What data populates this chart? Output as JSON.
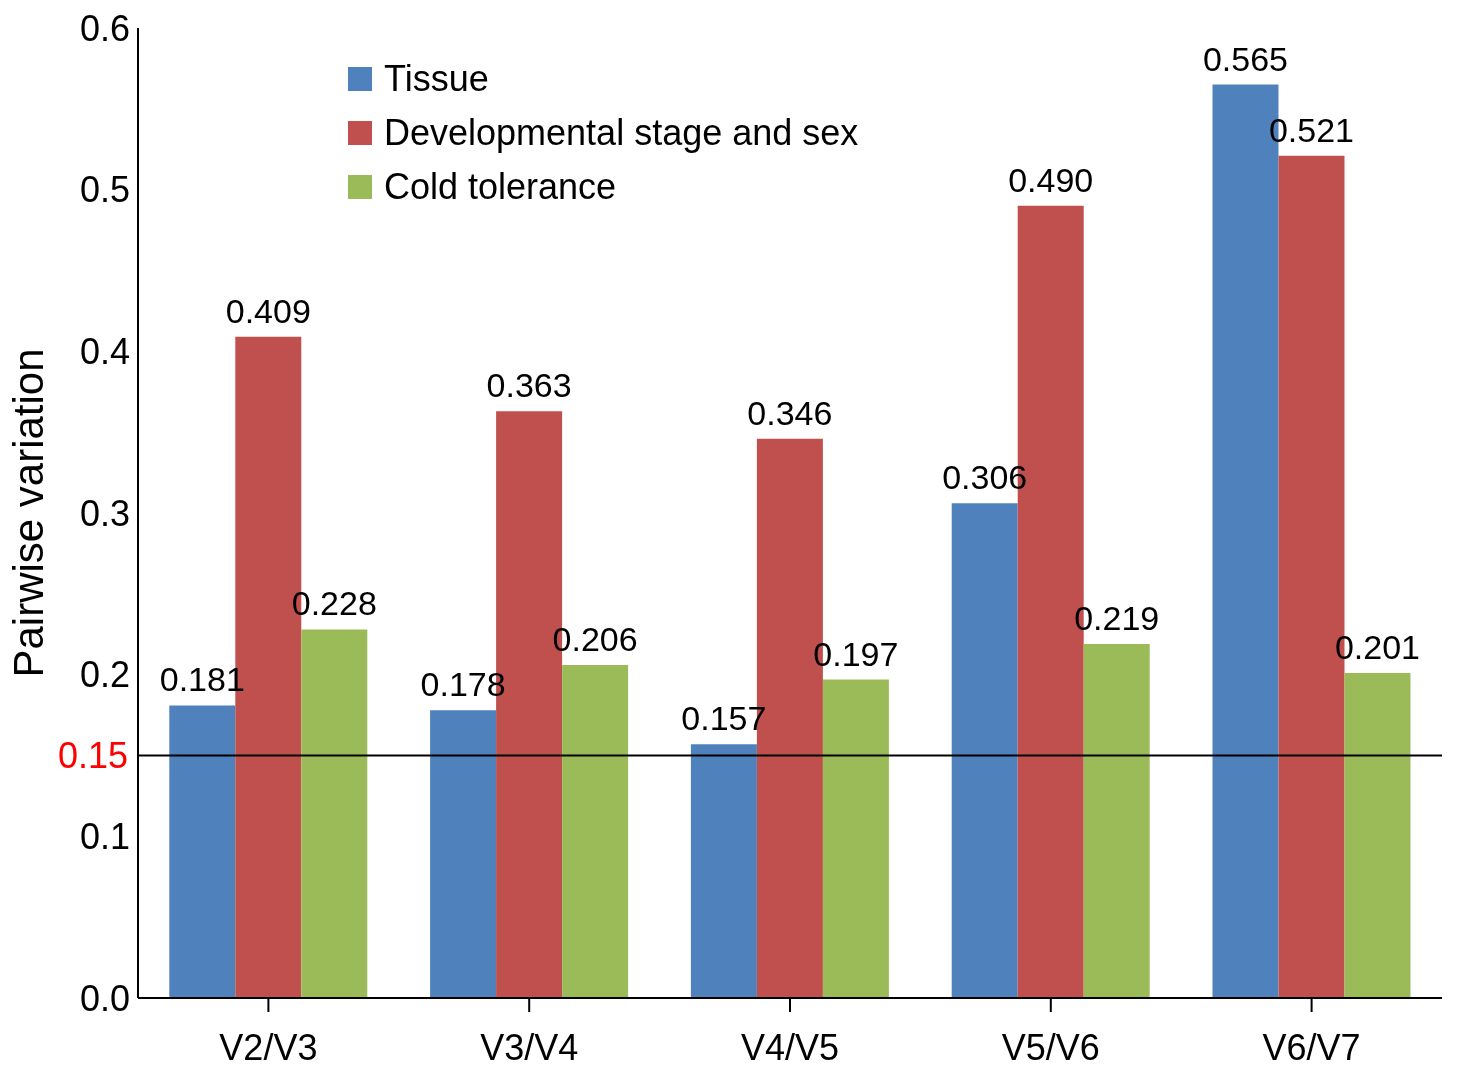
{
  "chart_data": {
    "type": "bar",
    "ylabel": "Pairwise variation",
    "categories": [
      "V2/V3",
      "V3/V4",
      "V4/V5",
      "V5/V6",
      "V6/V7"
    ],
    "series": [
      {
        "name": "Tissue",
        "color": "#4f81bd",
        "values": [
          0.181,
          0.178,
          0.157,
          0.306,
          0.565
        ],
        "value_labels": [
          "0.181",
          "0.178",
          "0.157",
          "0.306",
          "0.565"
        ]
      },
      {
        "name": "Developmental stage and sex",
        "color": "#c0504d",
        "values": [
          0.409,
          0.363,
          0.346,
          0.49,
          0.521
        ],
        "value_labels": [
          "0.409",
          "0.363",
          "0.346",
          "0.490",
          "0.521"
        ]
      },
      {
        "name": "Cold tolerance",
        "color": "#9bbb59",
        "values": [
          0.228,
          0.206,
          0.197,
          0.219,
          0.201
        ],
        "value_labels": [
          "0.228",
          "0.206",
          "0.197",
          "0.219",
          "0.201"
        ]
      }
    ],
    "ylim": [
      0,
      0.6
    ],
    "yticks": [
      {
        "value": 0,
        "label": "0.0"
      },
      0.1,
      0.2,
      0.3,
      0.4,
      0.5,
      0.6
    ],
    "ref_lines": [
      {
        "axis": "y",
        "value": 0.15,
        "label": "0.15",
        "color": "#000000"
      }
    ],
    "legend": "top left"
  }
}
